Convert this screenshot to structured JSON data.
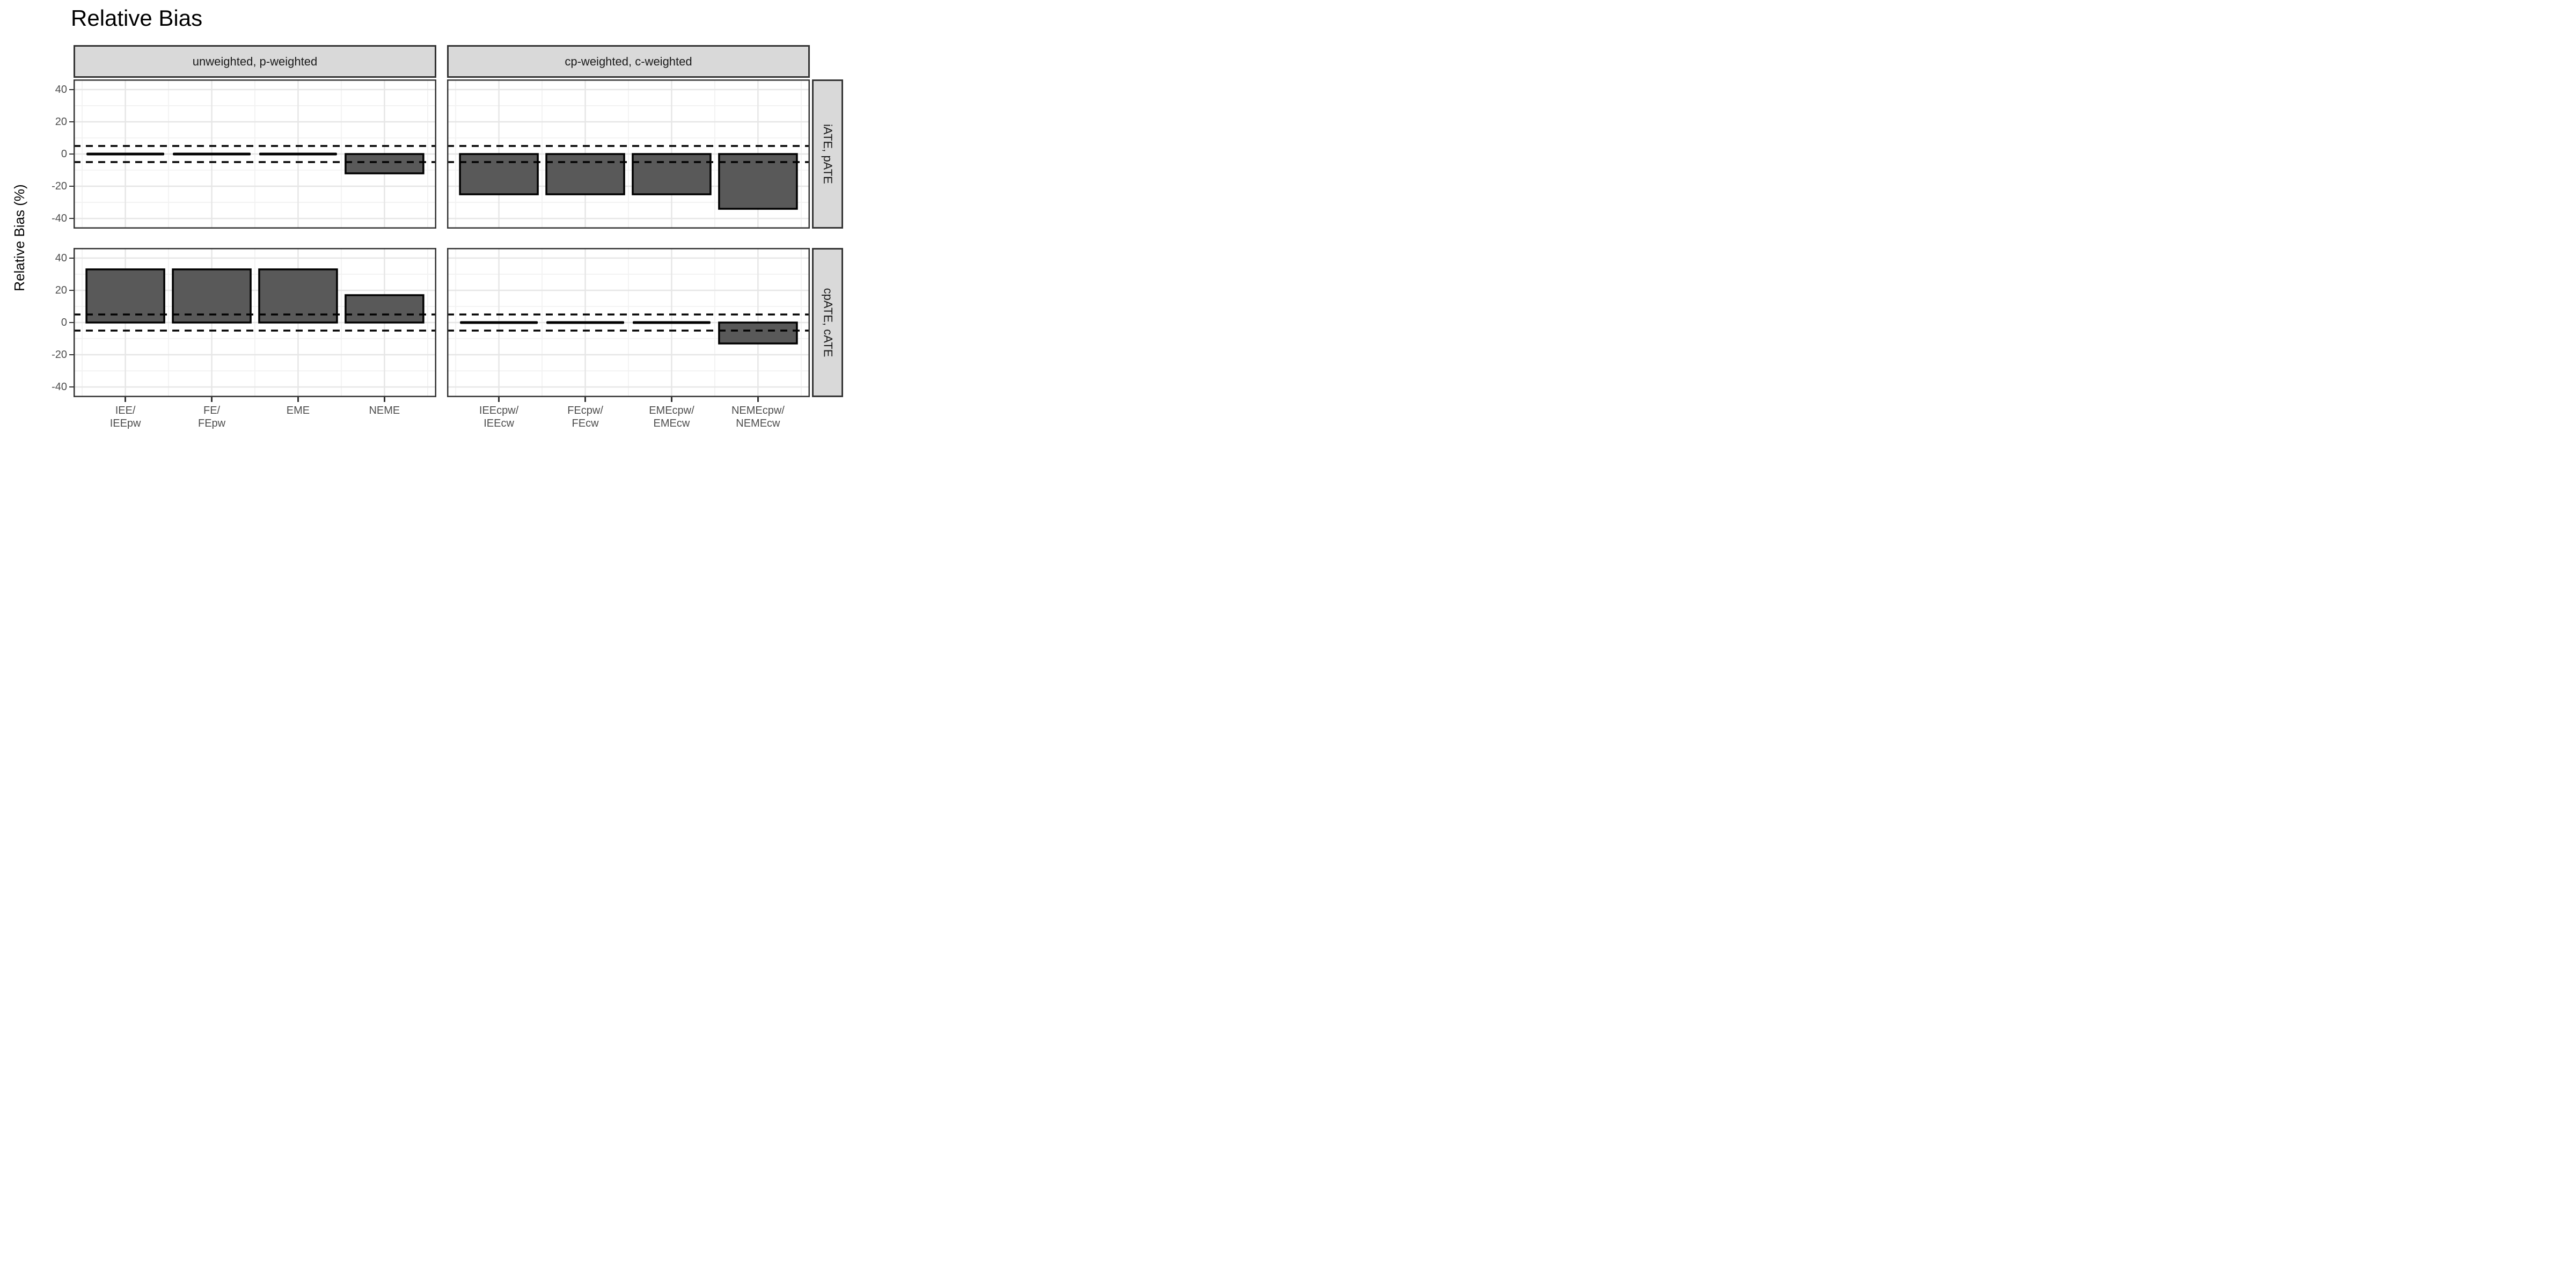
{
  "title": "Relative Bias",
  "y_axis": {
    "title": "Relative Bias (%)",
    "ticks": [
      40,
      20,
      0,
      -20,
      -40
    ],
    "minor_ticks": [
      30,
      10,
      -10,
      -30
    ],
    "limits": [
      -46.3,
      46.3
    ]
  },
  "facets": {
    "col_labels": [
      "unweighted, p-weighted",
      "cp-weighted, c-weighted"
    ],
    "row_labels": [
      "iATE, pATE",
      "cpATE, cATE"
    ]
  },
  "x_labels": {
    "columns": [
      [
        [
          "IEE/",
          "IEEpw"
        ],
        [
          "FE/",
          "FEpw"
        ],
        [
          "EME"
        ],
        [
          "NEME"
        ]
      ],
      [
        [
          "IEEcpw/",
          "IEEcw"
        ],
        [
          "FEcpw/",
          "FEcw"
        ],
        [
          "EMEcpw/",
          "EMEcw"
        ],
        [
          "NEMEcpw/",
          "NEMEcw"
        ]
      ]
    ]
  },
  "chart_data": {
    "type": "bar",
    "title": "Relative Bias",
    "ylabel": "Relative Bias (%)",
    "ylim": [
      -46.3,
      46.3
    ],
    "y_ticks": [
      40,
      20,
      0,
      -20,
      -40
    ],
    "reference_lines_y": [
      5,
      -5
    ],
    "grid": true,
    "legend": false,
    "facet_col_labels": [
      "unweighted, p-weighted",
      "cp-weighted, c-weighted"
    ],
    "facet_row_labels": [
      "iATE, pATE",
      "cpATE, cATE"
    ],
    "panels": [
      {
        "row": "iATE, pATE",
        "col": "unweighted, p-weighted",
        "categories": [
          "IEE/IEEpw",
          "FE/FEpw",
          "EME",
          "NEME"
        ],
        "values": [
          0,
          0,
          0,
          -12
        ]
      },
      {
        "row": "iATE, pATE",
        "col": "cp-weighted, c-weighted",
        "categories": [
          "IEEcpw/IEEcw",
          "FEcpw/FEcw",
          "EMEcpw/EMEcw",
          "NEMEcpw/NEMEcw"
        ],
        "values": [
          -25,
          -25,
          -25,
          -34
        ]
      },
      {
        "row": "cpATE, cATE",
        "col": "unweighted, p-weighted",
        "categories": [
          "IEE/IEEpw",
          "FE/FEpw",
          "EME",
          "NEME"
        ],
        "values": [
          33,
          33,
          33,
          17
        ]
      },
      {
        "row": "cpATE, cATE",
        "col": "cp-weighted, c-weighted",
        "categories": [
          "IEEcpw/IEEcw",
          "FEcpw/FEcw",
          "EMEcpw/EMEcw",
          "NEMEcpw/NEMEcw"
        ],
        "values": [
          0,
          0,
          0,
          -13
        ]
      }
    ]
  },
  "colors": {
    "bar_fill": "#595959",
    "bar_outline": "#000000",
    "strip_fill": "#d9d9d9",
    "strip_border": "#333333",
    "panel_border": "#333333",
    "grid_major": "#e6e6e6",
    "grid_minor": "#f2f2f2",
    "axis_text": "#4d4d4d",
    "title_text": "#000000",
    "reference_line": "#000000"
  }
}
